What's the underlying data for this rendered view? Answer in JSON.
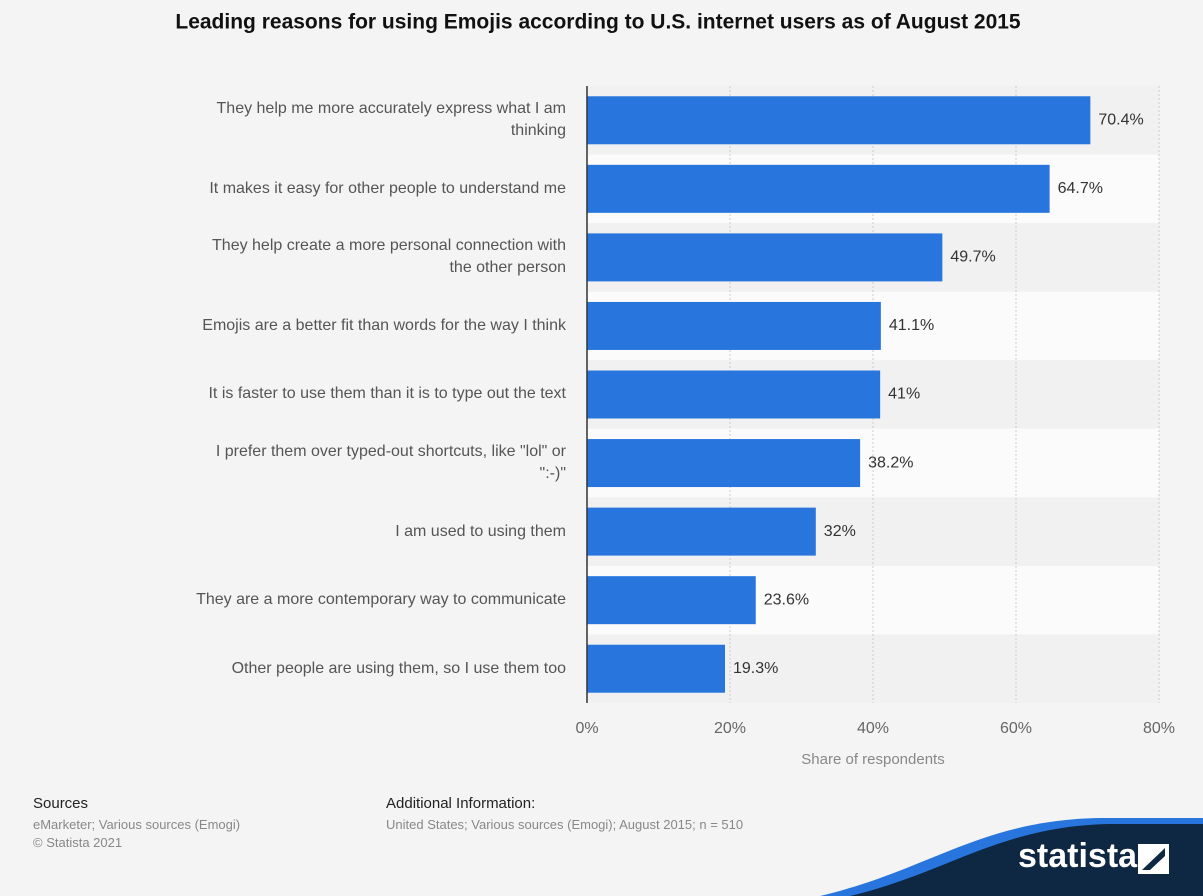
{
  "chart_data": {
    "type": "bar",
    "orientation": "horizontal",
    "title": "Leading reasons for using Emojis according to U.S. internet users as of August 2015",
    "categories": [
      "They help me more accurately express what I am thinking",
      "It makes it easy for other people to understand me",
      "They help create a more personal connection with the other person",
      "Emojis are a better fit than words for the way I think",
      "It is faster to use them than it is to type out the text",
      "I prefer them over typed-out shortcuts, like \"lol\" or \":-)\"",
      "I am used to using them",
      "They are a more contemporary way to communicate",
      "Other people are using them, so I use them too"
    ],
    "values": [
      70.4,
      64.7,
      49.7,
      41.1,
      41,
      38.2,
      32,
      23.6,
      19.3
    ],
    "value_labels": [
      "70.4%",
      "64.7%",
      "49.7%",
      "41.1%",
      "41%",
      "38.2%",
      "32%",
      "23.6%",
      "19.3%"
    ],
    "color": "#2876dd",
    "xlabel": "Share of respondents",
    "xlim": [
      0,
      80
    ],
    "xticks": [
      {
        "value": 0,
        "label": "0%"
      },
      {
        "value": 20,
        "label": "20%"
      },
      {
        "value": 40,
        "label": "40%"
      },
      {
        "value": 60,
        "label": "60%"
      },
      {
        "value": 80,
        "label": "80%"
      }
    ],
    "grid": true
  },
  "footer": {
    "sources_title": "Sources",
    "sources": "eMarketer; Various sources (Emogi)",
    "copyright": "© Statista 2021",
    "info_title": "Additional Information:",
    "info": "United States; Various sources (Emogi); August 2015; n = 510",
    "logo": "statista"
  }
}
